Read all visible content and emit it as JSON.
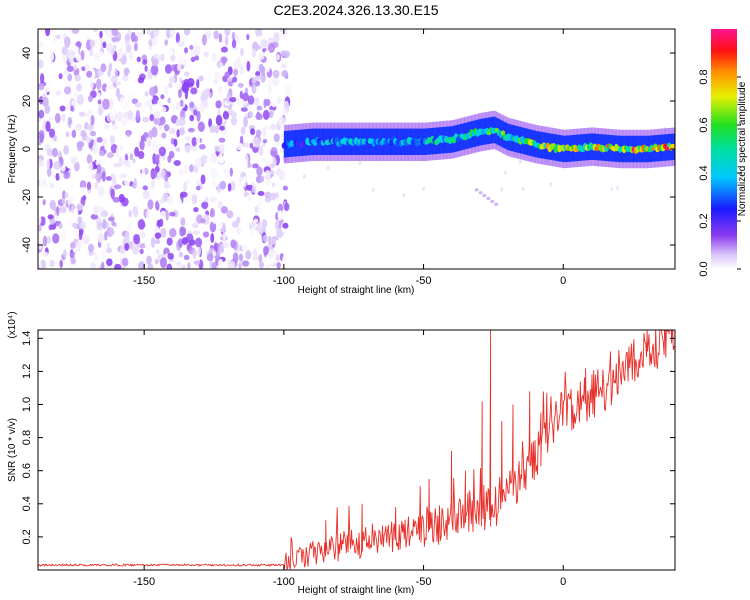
{
  "figure": {
    "title": "C2E3.2024.326.13.30.E15"
  },
  "chart_data": [
    {
      "type": "heatmap",
      "title": "C2E3.2024.326.13.30.E15",
      "xlabel": "Height of straight line (km)",
      "ylabel": "Frequency (Hz)",
      "xlim": [
        -188,
        40
      ],
      "ylim": [
        -50,
        50
      ],
      "x_ticks": [
        -150,
        -100,
        -50,
        0
      ],
      "x_tick_labels": [
        "-150",
        "-100",
        "-50",
        "0"
      ],
      "y_ticks": [
        -40,
        -20,
        0,
        20,
        40
      ],
      "y_tick_labels": [
        "-40",
        "-20",
        "0",
        "20",
        "40"
      ],
      "colorbar": {
        "label": "Normalized spectral amplitude",
        "range": [
          0,
          1
        ],
        "ticks": [
          0.0,
          0.2,
          0.4,
          0.6,
          0.8
        ],
        "tick_labels": [
          "0.0",
          "0.2",
          "0.4",
          "0.6",
          "0.8"
        ],
        "colormap": "rainbow (purple-blue-cyan-green-yellow-red-magenta)"
      },
      "noise_region": {
        "x_range": [
          -188,
          -100
        ],
        "freq_range": [
          -50,
          50
        ],
        "level": [
          0.0,
          0.15
        ]
      },
      "signal_ridge": {
        "x": [
          -100,
          -90,
          -80,
          -70,
          -60,
          -50,
          -40,
          -30,
          -25,
          -20,
          -10,
          0,
          10,
          20,
          30,
          40
        ],
        "freq_hz": [
          2,
          3,
          3,
          3,
          3,
          3,
          4,
          7,
          8,
          5,
          2,
          0,
          1,
          0,
          0,
          1
        ],
        "level": [
          0.35,
          0.4,
          0.45,
          0.45,
          0.45,
          0.5,
          0.55,
          0.6,
          0.6,
          0.6,
          0.7,
          0.8,
          0.85,
          0.9,
          0.95,
          0.95
        ]
      },
      "grid": false
    },
    {
      "type": "line",
      "xlabel": "Height of straight line (km)",
      "ylabel": "SNR (10 * v/v)",
      "y_multiplier": "(x10⁴)",
      "xlim": [
        -188,
        40
      ],
      "ylim": [
        0,
        1.45
      ],
      "x_ticks": [
        -150,
        -100,
        -50,
        0
      ],
      "x_tick_labels": [
        "-150",
        "-100",
        "-50",
        "0"
      ],
      "y_ticks": [
        0.2,
        0.4,
        0.6,
        0.8,
        1.0,
        1.2,
        1.4
      ],
      "y_tick_labels": [
        "0.2",
        "0.4",
        "0.6",
        "0.8",
        "1.0",
        "1.2",
        "1.4"
      ],
      "series": [
        {
          "color": "#e8302a",
          "x": [
            -188,
            -150,
            -110,
            -100,
            -90,
            -80,
            -70,
            -60,
            -50,
            -40,
            -30,
            -25,
            -20,
            -15,
            -10,
            -5,
            0,
            5,
            10,
            15,
            20,
            25,
            30,
            35,
            40
          ],
          "values": [
            0.03,
            0.03,
            0.03,
            0.03,
            0.1,
            0.14,
            0.18,
            0.2,
            0.23,
            0.3,
            0.37,
            0.4,
            0.45,
            0.55,
            0.7,
            0.85,
            0.95,
            1.0,
            1.05,
            1.1,
            1.15,
            1.25,
            1.32,
            1.38,
            1.4
          ],
          "spikes": [
            {
              "x": -85,
              "value": 0.3
            },
            {
              "x": -72,
              "value": 0.4
            },
            {
              "x": -60,
              "value": 0.38
            },
            {
              "x": -48,
              "value": 0.55
            },
            {
              "x": -40,
              "value": 0.72
            },
            {
              "x": -35,
              "value": 0.6
            },
            {
              "x": -29,
              "value": 1.02
            },
            {
              "x": -26,
              "value": 1.45
            },
            {
              "x": -22,
              "value": 0.9
            },
            {
              "x": -18,
              "value": 1.0
            },
            {
              "x": -12,
              "value": 1.08
            },
            {
              "x": -8,
              "value": 0.95
            },
            {
              "x": 8,
              "value": 1.22
            },
            {
              "x": 18,
              "value": 1.2
            },
            {
              "x": 30,
              "value": 1.45
            }
          ]
        }
      ],
      "grid": false
    }
  ]
}
